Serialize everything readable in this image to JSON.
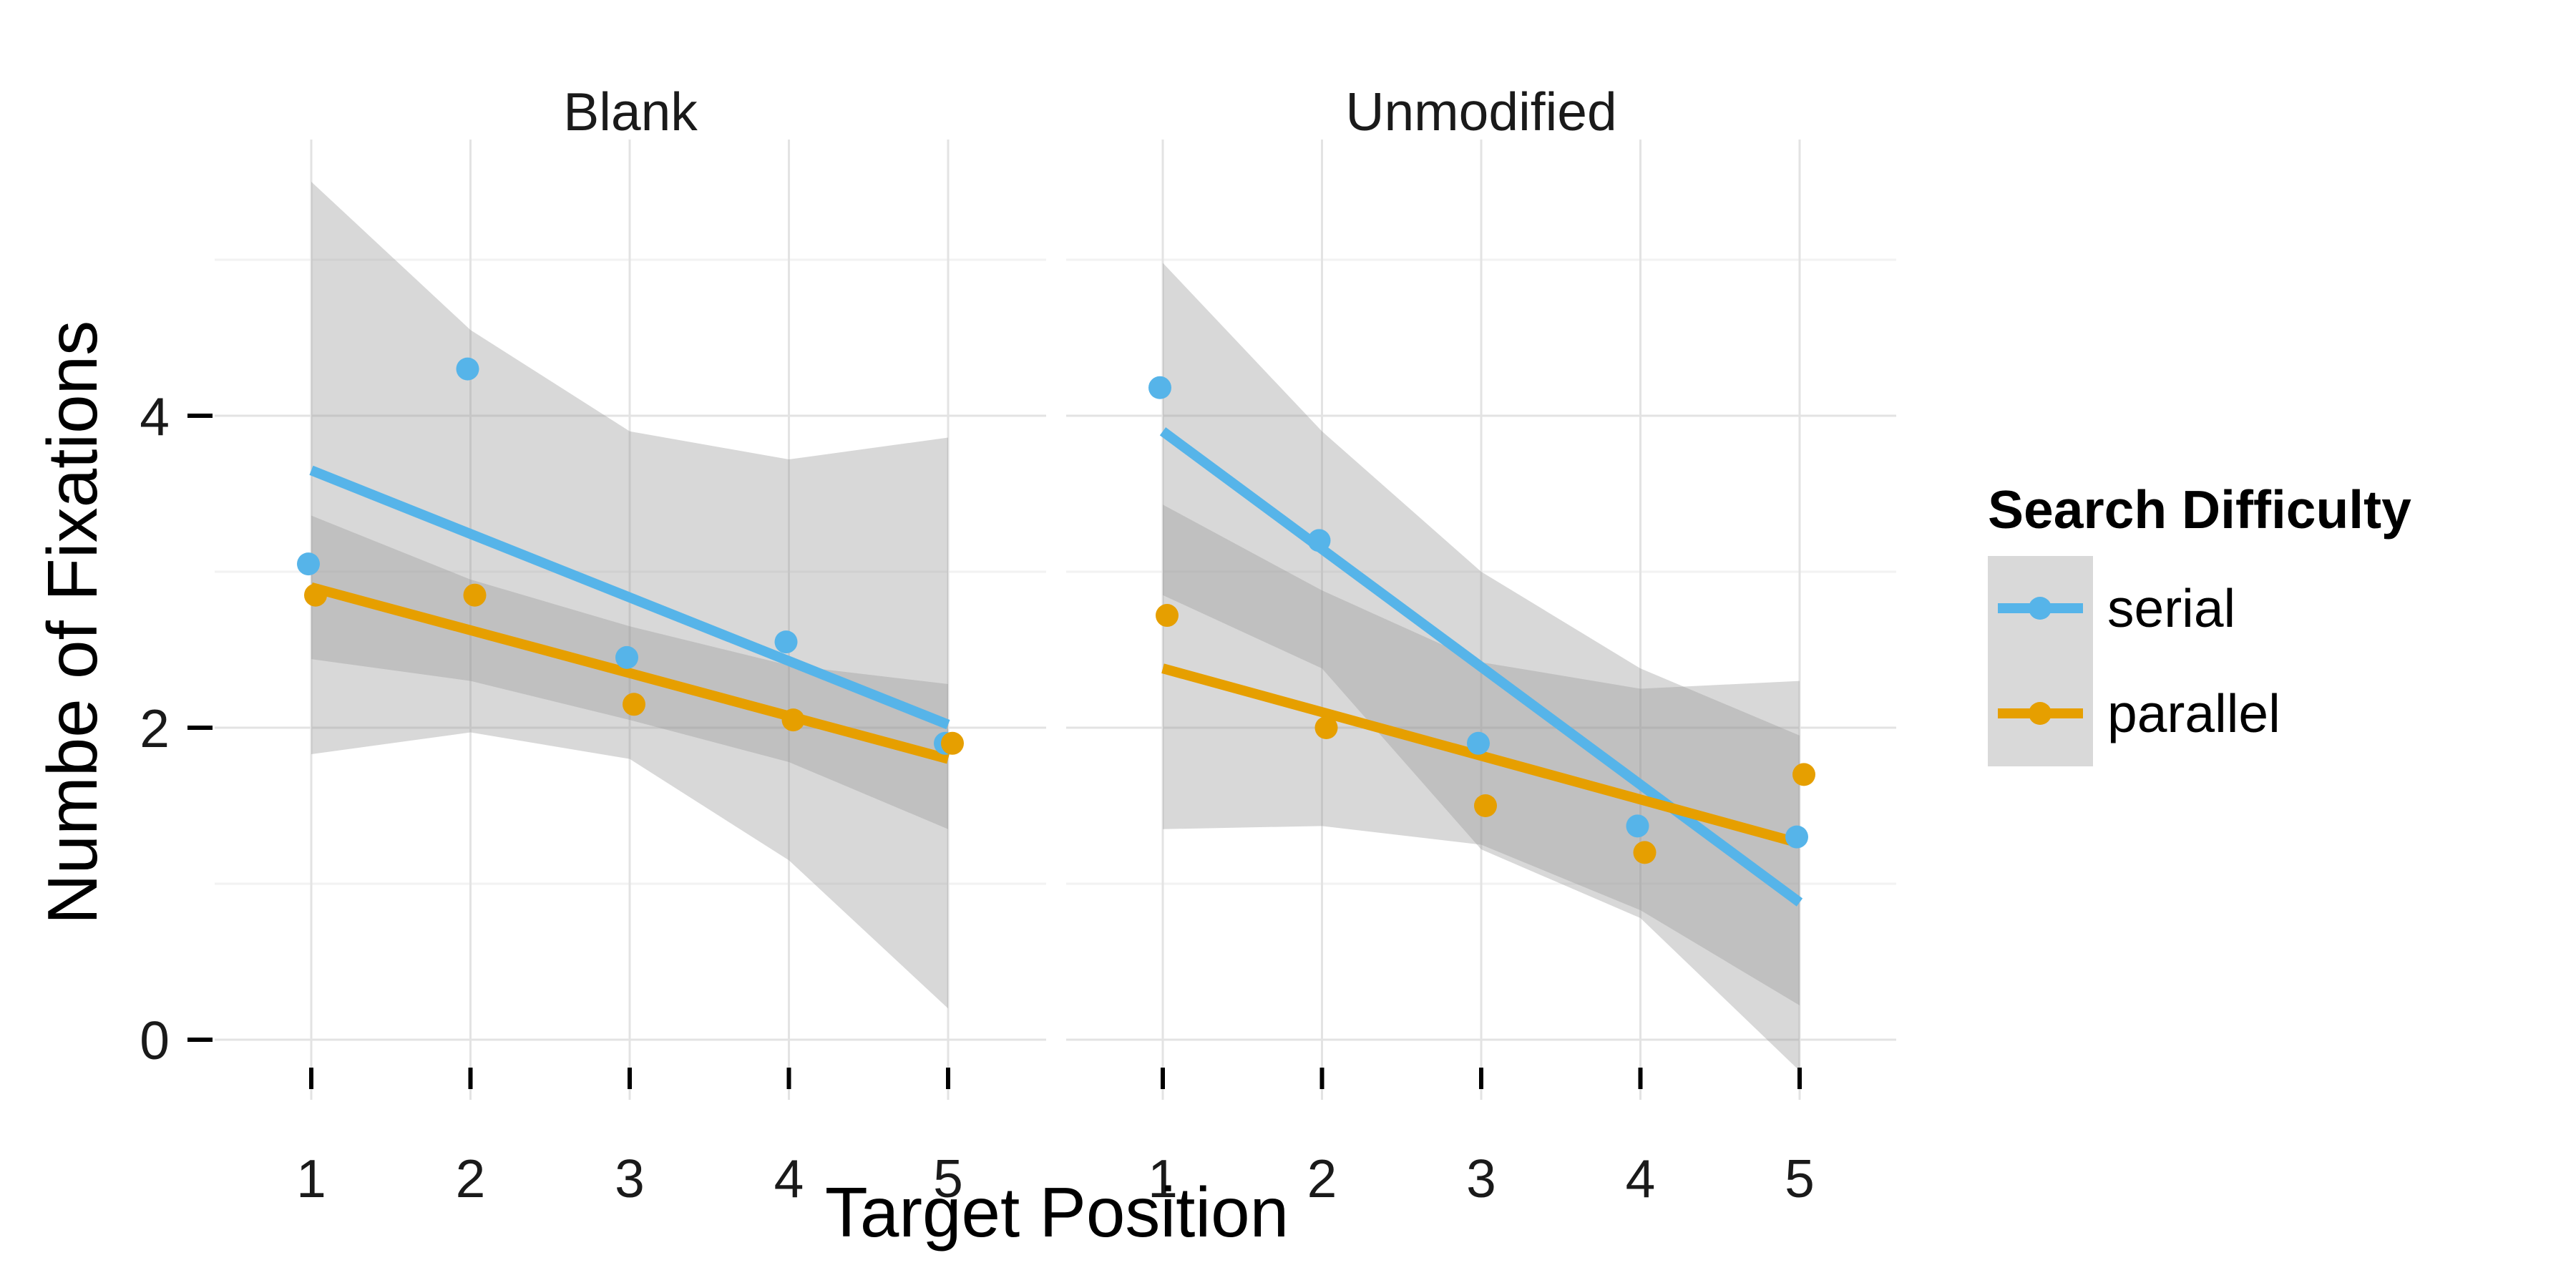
{
  "chart_data": {
    "type": "scatter",
    "xlabel": "Target Position",
    "ylabel": "Numbe of Fixations",
    "x_ticks": [
      "1",
      "2",
      "3",
      "4",
      "5"
    ],
    "y_ticks": [
      "0",
      "2",
      "4"
    ],
    "xlim": [
      0.6,
      5.6
    ],
    "ylim": [
      -0.45,
      5.95
    ],
    "grid": true,
    "legend": {
      "title": "Search Difficulty",
      "placement": "right",
      "entries": [
        "serial",
        "parallel"
      ]
    },
    "colors": {
      "serial": "#56B4E9",
      "parallel": "#E69F00",
      "band": "#999999"
    },
    "panels": [
      {
        "title": "Blank",
        "series": [
          {
            "name": "serial",
            "x": [
              1,
              2,
              3,
              4,
              5
            ],
            "y": [
              3.05,
              4.3,
              2.45,
              2.55,
              1.9
            ],
            "fit": {
              "y_start": 3.65,
              "y_end": 2.02
            },
            "ci": {
              "x": [
                1,
                2,
                3,
                4,
                5
              ],
              "lower": [
                1.83,
                1.97,
                1.8,
                1.15,
                0.2
              ],
              "upper": [
                5.5,
                4.55,
                3.9,
                3.72,
                3.86
              ]
            }
          },
          {
            "name": "parallel",
            "x": [
              1,
              2,
              3,
              4,
              5
            ],
            "y": [
              2.85,
              2.85,
              2.15,
              2.05,
              1.9
            ],
            "fit": {
              "y_start": 2.9,
              "y_end": 1.8
            },
            "ci": {
              "x": [
                1,
                2,
                3,
                4,
                5
              ],
              "lower": [
                2.44,
                2.3,
                2.05,
                1.78,
                1.35
              ],
              "upper": [
                3.36,
                2.95,
                2.65,
                2.4,
                2.28
              ]
            }
          }
        ]
      },
      {
        "title": "Unmodified",
        "series": [
          {
            "name": "serial",
            "x": [
              1,
              2,
              3,
              4,
              5
            ],
            "y": [
              4.18,
              3.2,
              1.9,
              1.37,
              1.3
            ],
            "fit": {
              "y_start": 3.9,
              "y_end": 0.88
            },
            "ci": {
              "x": [
                1,
                2,
                3,
                4,
                5
              ],
              "lower": [
                2.85,
                2.38,
                1.22,
                0.78,
                -0.2
              ],
              "upper": [
                4.98,
                3.9,
                3.0,
                2.38,
                1.95
              ]
            }
          },
          {
            "name": "parallel",
            "x": [
              1,
              2,
              3,
              4,
              5
            ],
            "y": [
              2.72,
              2.0,
              1.5,
              1.2,
              1.7
            ],
            "fit": {
              "y_start": 2.38,
              "y_end": 1.26
            },
            "ci": {
              "x": [
                1,
                2,
                3,
                4,
                5
              ],
              "lower": [
                1.35,
                1.37,
                1.25,
                0.83,
                0.22
              ],
              "upper": [
                3.43,
                2.88,
                2.42,
                2.25,
                2.3
              ]
            }
          }
        ]
      }
    ]
  }
}
